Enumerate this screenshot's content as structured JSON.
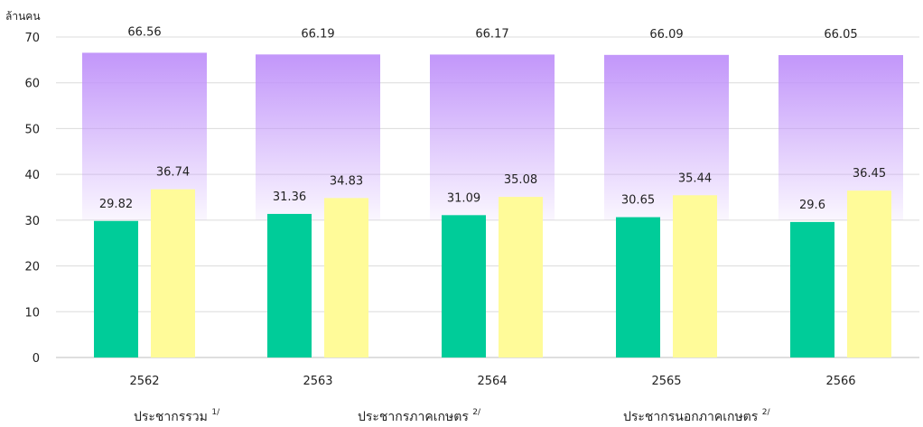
{
  "chart_data": {
    "type": "bar",
    "unit_label": "ล้านคน",
    "categories": [
      "2562",
      "2563",
      "2564",
      "2565",
      "2566"
    ],
    "ylim": [
      0,
      70
    ],
    "yticks": [
      0,
      10,
      20,
      30,
      40,
      50,
      60,
      70
    ],
    "grid": true,
    "legend_position": "bottom",
    "series": [
      {
        "name": "ประชากรรวม",
        "note": "1/",
        "color": "#C9A6F5",
        "values": [
          66.56,
          66.19,
          66.17,
          66.09,
          66.05
        ]
      },
      {
        "name": "ประชากรภาคเกษตร",
        "note": "2/",
        "color": "#00CC99",
        "values": [
          29.82,
          31.36,
          31.09,
          30.65,
          29.6
        ]
      },
      {
        "name": "ประชากรนอกภาคเกษตร",
        "note": "2/",
        "color": "#FFFB99",
        "values": [
          36.74,
          34.83,
          35.08,
          35.44,
          36.45
        ]
      }
    ]
  }
}
